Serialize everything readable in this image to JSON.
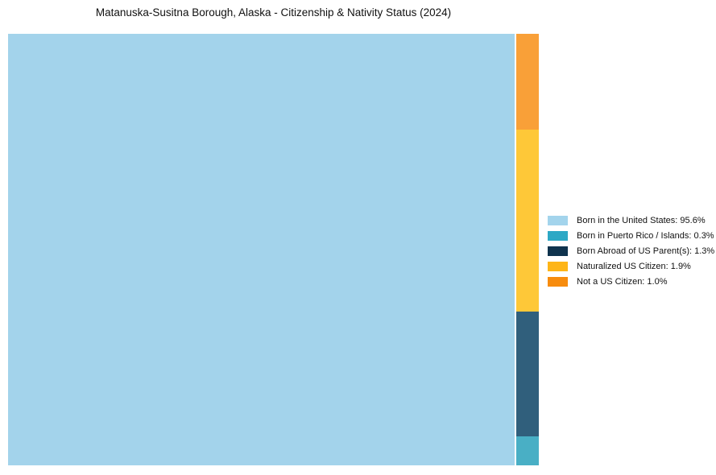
{
  "title": "Matanuska-Susitna Borough, Alaska - Citizenship & Nativity Status (2024)",
  "chart_data": {
    "type": "treemap",
    "title": "Matanuska-Susitna Borough, Alaska - Citizenship & Nativity Status (2024)",
    "unit": "%",
    "categories": [
      "Born in the United States",
      "Born in Puerto Rico / Islands",
      "Born Abroad of US Parent(s)",
      "Naturalized US Citizen",
      "Not a US Citizen"
    ],
    "values": [
      95.6,
      0.3,
      1.3,
      1.9,
      1.0
    ],
    "colors": [
      "#a3d3eb",
      "#49afc5",
      "#305f7c",
      "#fec838",
      "#f9a038"
    ],
    "layout": {
      "main_segment": "Born in the United States",
      "minor_column_order_top_to_bottom": [
        "Not a US Citizen",
        "Naturalized US Citizen",
        "Born Abroad of US Parent(s)",
        "Born in Puerto Rico / Islands"
      ],
      "legend_position": "right",
      "background": "#ffffff",
      "gridlines": false,
      "axes": false
    }
  },
  "legend": {
    "items": [
      {
        "label": "Born in the United States: 95.6%",
        "color": "#a3d4ec"
      },
      {
        "label": "Born in Puerto Rico / Islands: 0.3%",
        "color": "#2da8c5"
      },
      {
        "label": "Born Abroad of US Parent(s): 1.3%",
        "color": "#0f334d"
      },
      {
        "label": "Naturalized US Citizen: 1.9%",
        "color": "#feb517"
      },
      {
        "label": "Not a US Citizen: 1.0%",
        "color": "#f78c0e"
      }
    ]
  }
}
